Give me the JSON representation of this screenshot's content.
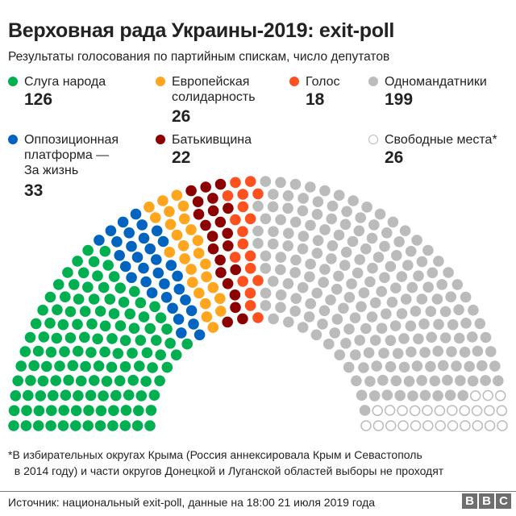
{
  "header": {
    "title": "Верховная рада Украины-2019: exit-poll",
    "subtitle": "Результаты голосования по партийным спискам, число депутатов"
  },
  "legend": [
    {
      "label": "Слуга народа",
      "value": "126",
      "color": "#00b050",
      "style": "filled"
    },
    {
      "label": "Европейская\nсолидарность",
      "value": "26",
      "color": "#ffa51e",
      "style": "filled"
    },
    {
      "label": "Голос",
      "value": "18",
      "color": "#ff5020",
      "style": "filled"
    },
    {
      "label": "Одномандатники",
      "value": "199",
      "color": "#bbbbbb",
      "style": "filled"
    },
    {
      "label": "Оппозиционная\nплатформа —\nЗа жизнь",
      "value": "33",
      "color": "#0064c0",
      "style": "filled"
    },
    {
      "label": "Батькивщина",
      "value": "22",
      "color": "#8c0000",
      "style": "filled"
    },
    {
      "label": "Свободные места*",
      "value": "26",
      "color": "#bbbbbb",
      "style": "empty"
    }
  ],
  "footnote": "*В избирательных округах Крыма (Россия аннексировала Крым и Севастополь\n  в 2014 году) и части округов Донецкой и Луганской областей выборы не проходят",
  "source": "Источник: национальный exit-poll, данные на 18:00 21 июля 2019 года",
  "logo": [
    "B",
    "B",
    "C"
  ],
  "chart_data": {
    "type": "parliament-hemicycle",
    "title": "Верховная рада Украины-2019: exit-poll",
    "subtitle": "Результаты голосования по партийным спискам, число депутатов",
    "total_seats": 450,
    "rows": 12,
    "series": [
      {
        "name": "Слуга народа",
        "seats": 126,
        "color": "#00b050"
      },
      {
        "name": "Оппозиционная платформа — За жизнь",
        "seats": 33,
        "color": "#0064c0"
      },
      {
        "name": "Европейская солидарность",
        "seats": 26,
        "color": "#ffa51e"
      },
      {
        "name": "Батькивщина",
        "seats": 22,
        "color": "#8c0000"
      },
      {
        "name": "Голос",
        "seats": 18,
        "color": "#ff5020"
      },
      {
        "name": "Одномандатники",
        "seats": 199,
        "color": "#bbbbbb"
      },
      {
        "name": "Свободные места*",
        "seats": 26,
        "color": "#bbbbbb",
        "empty": true
      }
    ]
  }
}
